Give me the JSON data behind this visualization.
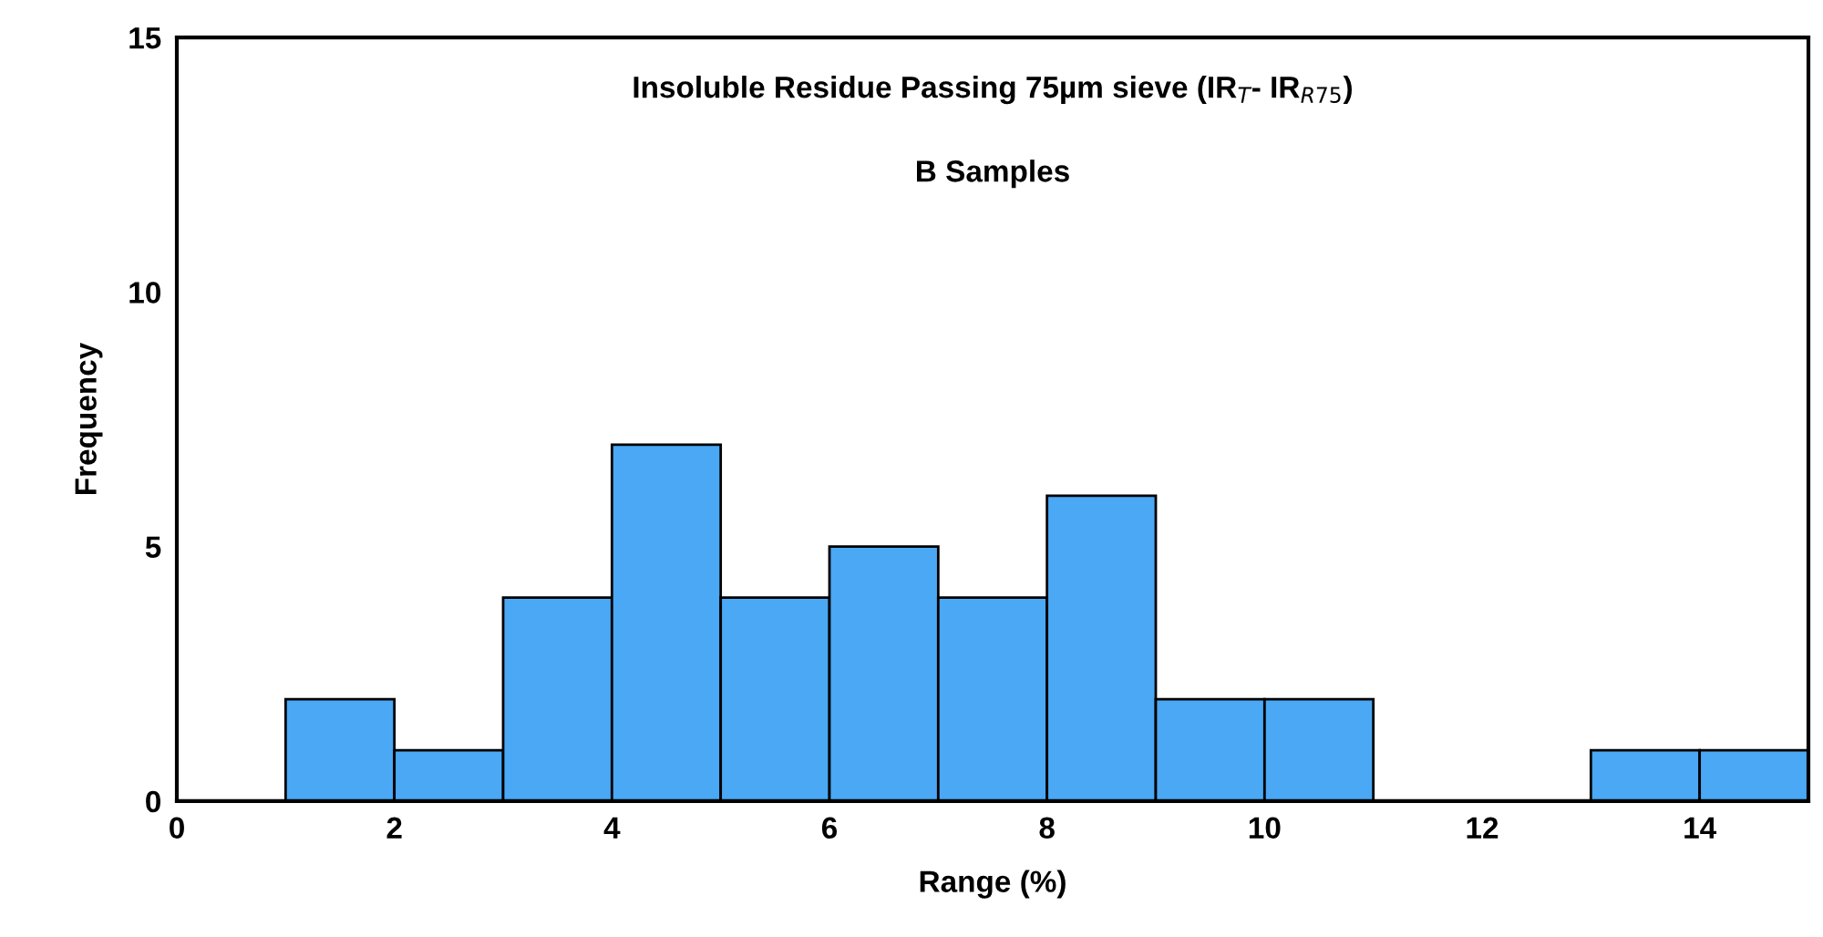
{
  "chart_data": {
    "type": "histogram",
    "title": "Insoluble Residue Passing 75µm sieve (IR$_{T}$- IR$_{R75}$)",
    "subtitle": "B Samples",
    "xlabel": "Range (%)",
    "ylabel": "Frequency",
    "bins": [
      1,
      2,
      3,
      4,
      5,
      6,
      7,
      8,
      9,
      10,
      11,
      12,
      13,
      14,
      15
    ],
    "values": [
      2,
      1,
      4,
      7,
      4,
      5,
      4,
      6,
      2,
      2,
      0,
      0,
      1,
      1
    ],
    "color": "#4aa8f5",
    "xlim": [
      0,
      15
    ],
    "xticks": [
      0,
      2,
      4,
      6,
      8,
      10,
      12,
      14
    ],
    "ylim": [
      0,
      15
    ],
    "yticks": [
      0,
      5,
      10,
      15
    ],
    "grid": false
  }
}
